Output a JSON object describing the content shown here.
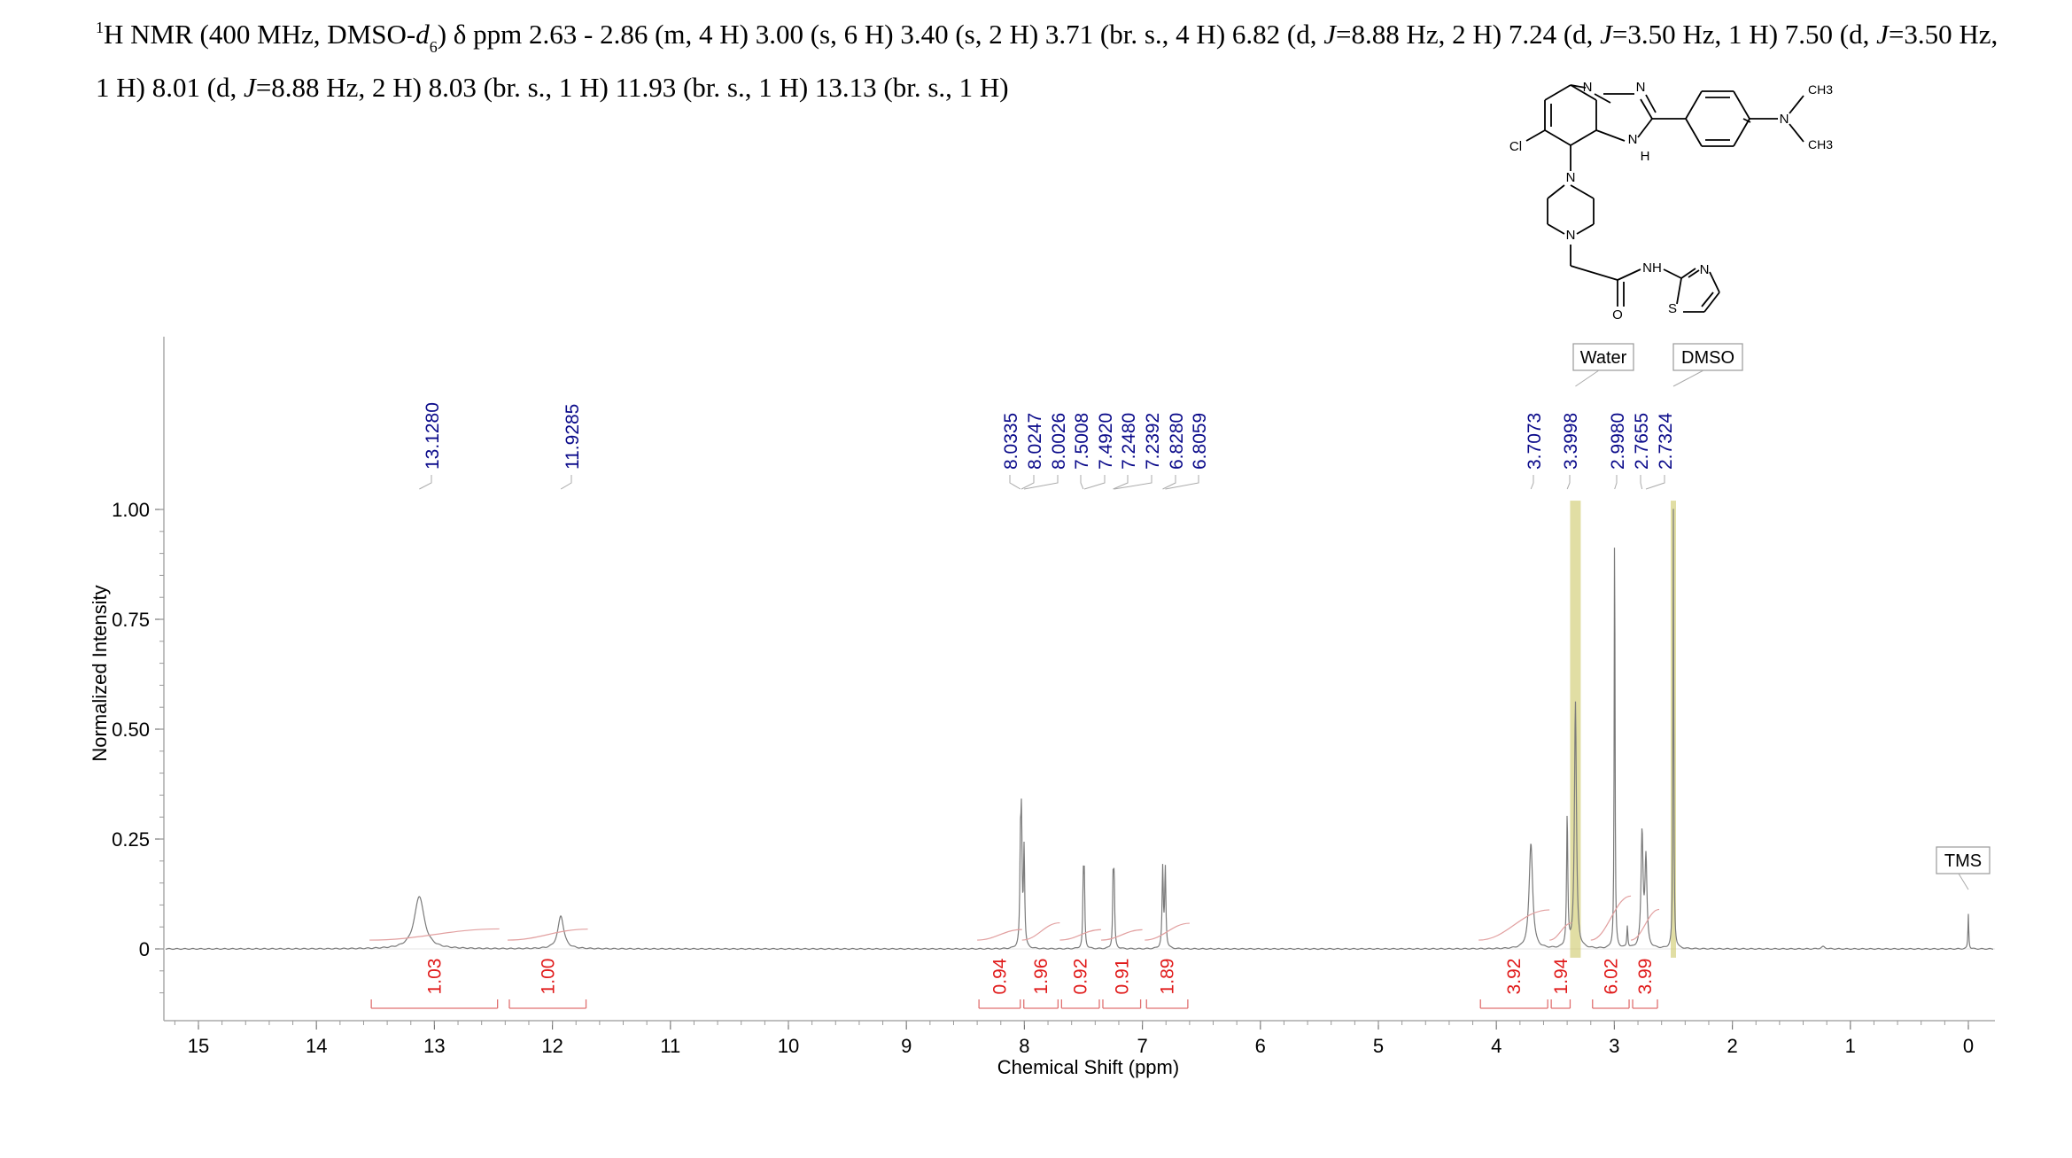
{
  "header": {
    "nucleus_mass": "1",
    "nucleus_symbol": "H",
    "lead": " NMR (400 MHz, DMSO-",
    "solvent_d": "d",
    "solvent_sub": "6",
    "after_solvent": ") δ ppm 2.63 - 2.86 (m, 4 H) 3.00 (s, 6 H) 3.40 (s, 2 H) 3.71 (br. s., 4 H) 6.82 (d, ",
    "j1_sym": "J",
    "j1_rest": "=8.88 Hz, 2 H) 7.24 (d, ",
    "j2_sym": "J",
    "j2_rest": "=3.50 Hz, 1 H) 7.50 (d, ",
    "j3_sym": "J",
    "j3_rest": "=3.50 Hz, 1 H) 8.01 (d, ",
    "j4_sym": "J",
    "j4_rest": "=8.88 Hz, 2 H) 8.03 (br. s., 1 H) 11.93 (br. s., 1 H) 13.13 (br. s., 1 H)"
  },
  "structure": {
    "atoms": [
      "N",
      "N",
      "N",
      "H",
      "N",
      "CH3",
      "CH3",
      "Cl",
      "N",
      "N",
      "NH",
      "N",
      "S",
      "O"
    ]
  },
  "chart_data": {
    "type": "line",
    "xlabel": "Chemical Shift (ppm)",
    "ylabel": "Normalized Intensity",
    "xlim": [
      15.4,
      -0.2
    ],
    "x_reversed": true,
    "ylim": [
      -0.15,
      1.0
    ],
    "x_ticks": [
      "15",
      "14",
      "13",
      "12",
      "11",
      "10",
      "9",
      "8",
      "7",
      "6",
      "5",
      "4",
      "3",
      "2",
      "1",
      "0"
    ],
    "y_ticks": [
      "1.00",
      "0.75",
      "0.50",
      "0.25",
      "0"
    ],
    "peak_labels": [
      "13.1280",
      "11.9285",
      "8.0335",
      "8.0247",
      "8.0026",
      "7.5008",
      "7.4920",
      "7.2480",
      "7.2392",
      "6.8280",
      "6.8059",
      "3.7073",
      "3.3998",
      "2.9980",
      "2.7655",
      "2.7324"
    ],
    "peaks": [
      {
        "ppm": 13.128,
        "h": 0.12,
        "w": 0.05
      },
      {
        "ppm": 11.9285,
        "h": 0.075,
        "w": 0.03
      },
      {
        "ppm": 8.0335,
        "h": 0.2,
        "w": 0.006
      },
      {
        "ppm": 8.0247,
        "h": 0.26,
        "w": 0.006
      },
      {
        "ppm": 8.0026,
        "h": 0.22,
        "w": 0.006
      },
      {
        "ppm": 7.5008,
        "h": 0.15,
        "w": 0.005
      },
      {
        "ppm": 7.492,
        "h": 0.15,
        "w": 0.005
      },
      {
        "ppm": 7.248,
        "h": 0.15,
        "w": 0.005
      },
      {
        "ppm": 7.2392,
        "h": 0.15,
        "w": 0.005
      },
      {
        "ppm": 6.828,
        "h": 0.18,
        "w": 0.006
      },
      {
        "ppm": 6.8059,
        "h": 0.18,
        "w": 0.006
      },
      {
        "ppm": 3.7073,
        "h": 0.24,
        "w": 0.018
      },
      {
        "ppm": 3.3998,
        "h": 0.3,
        "w": 0.006
      },
      {
        "ppm": 3.33,
        "h": 0.56,
        "w": 0.01
      },
      {
        "ppm": 2.998,
        "h": 1.0,
        "w": 0.004
      },
      {
        "ppm": 2.89,
        "h": 0.05,
        "w": 0.005
      },
      {
        "ppm": 2.7655,
        "h": 0.26,
        "w": 0.01
      },
      {
        "ppm": 2.7324,
        "h": 0.2,
        "w": 0.01
      },
      {
        "ppm": 2.5,
        "h": 1.0,
        "w": 0.004
      },
      {
        "ppm": 1.23,
        "h": 0.005,
        "w": 0.02
      },
      {
        "ppm": 0.0,
        "h": 0.08,
        "w": 0.004
      }
    ],
    "integrals": [
      {
        "from": 13.55,
        "to": 12.45,
        "value": "1.03"
      },
      {
        "from": 12.38,
        "to": 11.7,
        "value": "1.00"
      },
      {
        "from": 8.4,
        "to": 8.02,
        "value": "0.94"
      },
      {
        "from": 8.02,
        "to": 7.7,
        "value": "1.96"
      },
      {
        "from": 7.7,
        "to": 7.35,
        "value": "0.92"
      },
      {
        "from": 7.35,
        "to": 7.0,
        "value": "0.91"
      },
      {
        "from": 6.98,
        "to": 6.6,
        "value": "1.89"
      },
      {
        "from": 4.15,
        "to": 3.55,
        "value": "3.92"
      },
      {
        "from": 3.55,
        "to": 3.36,
        "value": "1.94"
      },
      {
        "from": 3.2,
        "to": 2.86,
        "value": "6.02"
      },
      {
        "from": 2.86,
        "to": 2.62,
        "value": "3.99"
      }
    ],
    "solvent_bands": [
      {
        "ppm": 3.33,
        "name": "Water"
      },
      {
        "ppm": 2.5,
        "name": "DMSO"
      }
    ],
    "annotations": [
      "Water",
      "DMSO",
      "TMS"
    ]
  }
}
